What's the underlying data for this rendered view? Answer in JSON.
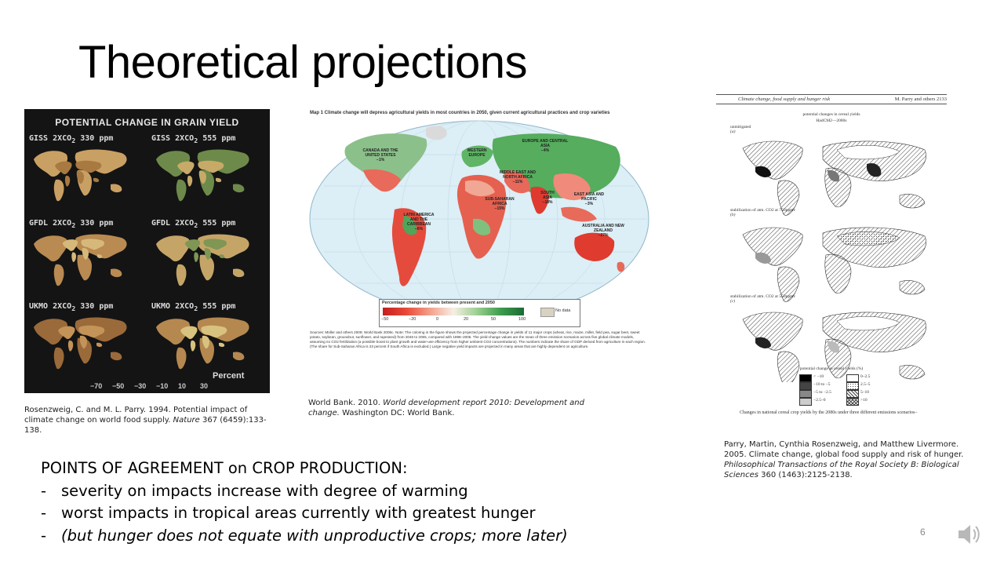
{
  "slide": {
    "title": "Theoretical projections",
    "page_number": "6",
    "icon": "speaker-icon"
  },
  "figure1": {
    "title": "POTENTIAL CHANGE IN GRAIN YIELD",
    "panels": [
      {
        "model": "GISS 2XCO",
        "sub": "2",
        "ppm": "330 ppm"
      },
      {
        "model": "GISS 2XCO",
        "sub": "2",
        "ppm": "555 ppm"
      },
      {
        "model": "GFDL 2XCO",
        "sub": "2",
        "ppm": "330 ppm"
      },
      {
        "model": "GFDL 2XCO",
        "sub": "2",
        "ppm": "555 ppm"
      },
      {
        "model": "UKMO 2XCO",
        "sub": "2",
        "ppm": "330 ppm"
      },
      {
        "model": "UKMO 2XCO",
        "sub": "2",
        "ppm": "555 ppm"
      }
    ],
    "scale_label": "Percent",
    "scale_ticks": [
      "−70",
      "−50",
      "−30",
      "−10",
      "10",
      "30"
    ],
    "scale_colors": [
      "#5a3a22",
      "#7b5431",
      "#9a6a3c",
      "#b9874e",
      "#d2a96a",
      "#e8d08a",
      "#f1e6a2",
      "#9ab870",
      "#4d7e3c",
      "#2d5a26"
    ],
    "caption_pre": "Rosenzweig, C. and M. L. Parry. 1994. Potential impact of climate change on world food supply. ",
    "caption_journal": "Nature",
    "caption_post": " 367 (6459):133-138."
  },
  "figure2": {
    "heading": "Map 1   Climate change will depress agricultural yields in most countries in 2050, given current agricultural practices and crop varieties",
    "regions": [
      {
        "name": "CANADA AND THE UNITED STATES",
        "value": "−1%"
      },
      {
        "name": "EUROPE AND CENTRAL ASIA",
        "value": "−4%"
      },
      {
        "name": "WESTERN EUROPE",
        "value": ""
      },
      {
        "name": "MIDDLE EAST AND NORTH AFRICA",
        "value": "−11%"
      },
      {
        "name": "SUB-SAHARAN AFRICA",
        "value": "−15%"
      },
      {
        "name": "SOUTH ASIA",
        "value": "−18%"
      },
      {
        "name": "EAST ASIA AND PACIFIC",
        "value": "−3%"
      },
      {
        "name": "LATIN AMERICA AND THE CARIBBEAN",
        "value": "−6%"
      },
      {
        "name": "AUSTRALIA AND NEW ZEALAND",
        "value": "−27%"
      }
    ],
    "legend_title": "Percentage change in yields between present and 2050",
    "legend_ticks": [
      "−50",
      "−20",
      "0",
      "20",
      "50",
      "100"
    ],
    "legend_nodata": "No data",
    "note": "Sources: Müller and others 2009; World Bank 2008c. Note: The coloring in the figure shows the projected percentage change in yields of 11 major crops (wheat, rice, maize, millet, field pea, sugar beet, sweet potato, soybean, groundnut, sunflower, and rapeseed) from 2046 to 2055, compared with 1996–2005. The yield-change values are the mean of three emission scenarios across five global climate models, assuming no CO2 fertilization (a possible boost to plant growth and water-use efficiency from higher ambient CO2 concentrations). The numbers indicate the share of GDP derived from agriculture in each region. (The share for Sub-Saharan Africa is 23 percent if South Africa is excluded.) Large negative yield impacts are projected in many areas that are highly dependent on agriculture.",
    "caption_pre": "World Bank. 2010. ",
    "caption_title": "World development report 2010: Development and change.",
    "caption_post": " Washington DC: World Bank."
  },
  "figure3": {
    "header_left": "Climate change, food supply and hunger risk",
    "header_right": "M. Parry and others   2133",
    "subtitle1": "potential changes in cereal yields",
    "subtitle2": "HadCM2—2080s",
    "panels": [
      {
        "label": "unmitigated",
        "letter": "(a)"
      },
      {
        "label": "stabilization of atm. CO2 at 750ppmv",
        "letter": "(b)"
      },
      {
        "label": "stabilization of atm. CO2 at 550ppmv",
        "letter": "(c)"
      }
    ],
    "legend_title": "potential change in cereal yields (%)",
    "legend_items": [
      "< −10",
      "−10 to −5",
      "−5 to −2.5",
      "−2.5–0",
      "0–2.5",
      "2.5–5",
      "5–10",
      ">10"
    ],
    "footer": "Changes in national cereal crop yields by the 2080s under three different emissions scenarios–",
    "caption_pre": "Parry, Martin, Cynthia Rosenzweig, and Matthew Livermore. 2005. Climate change, global food supply and risk of hunger. ",
    "caption_journal": "Philosophical Transactions of the Royal Society B: Biological Sciences",
    "caption_post": " 360 (1463):2125-2138."
  },
  "points": {
    "heading": "POINTS OF AGREEMENT on CROP PRODUCTION:",
    "items": [
      {
        "dash": "-",
        "text": "severity on impacts increase with degree of warming"
      },
      {
        "dash": "-",
        "text": "worst impacts in tropical areas currently with greatest hunger"
      },
      {
        "dash": "-",
        "text": "(but hunger does not equate with unproductive crops; more later)"
      }
    ]
  }
}
